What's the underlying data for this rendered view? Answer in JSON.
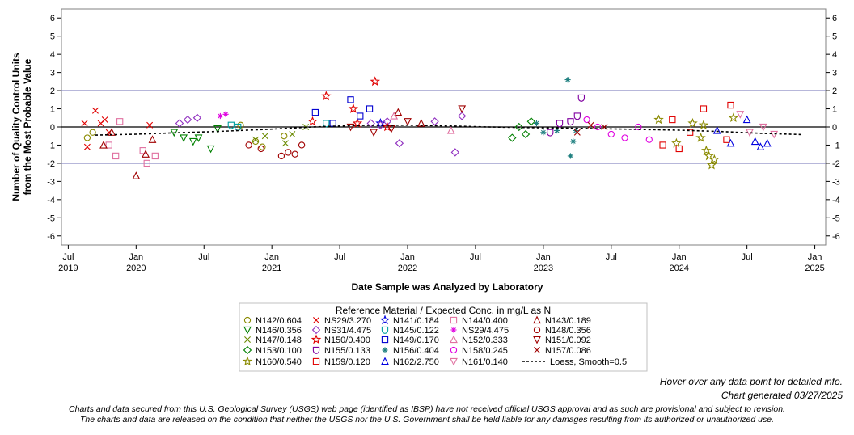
{
  "chart_data": {
    "type": "scatter",
    "ylabel_line1": "Number of Quality Control Units",
    "ylabel_line2": "from the Most Probable Value",
    "xlabel": "Date Sample was Analyzed by Laboratory",
    "ylim": [
      -6.5,
      6.5
    ],
    "xlim": [
      2019.45,
      2025.08
    ],
    "y_ticks": [
      -6,
      -5,
      -4,
      -3,
      -2,
      -1,
      0,
      1,
      2,
      3,
      4,
      5,
      6
    ],
    "y_tick_labels": [
      "-6",
      "-5",
      "-4",
      "-3",
      "-2",
      "-1",
      "0",
      "1",
      "2",
      "3",
      "4",
      "5",
      "6"
    ],
    "control_limits": [
      2,
      -2
    ],
    "zero_line": 0,
    "x_ticks": [
      {
        "value": 2019.5,
        "label": "Jul",
        "year": "2019"
      },
      {
        "value": 2020.0,
        "label": "Jan",
        "year": "2020"
      },
      {
        "value": 2020.5,
        "label": "Jul",
        "year": ""
      },
      {
        "value": 2021.0,
        "label": "Jan",
        "year": "2021"
      },
      {
        "value": 2021.5,
        "label": "Jul",
        "year": ""
      },
      {
        "value": 2022.0,
        "label": "Jan",
        "year": "2022"
      },
      {
        "value": 2022.5,
        "label": "Jul",
        "year": ""
      },
      {
        "value": 2023.0,
        "label": "Jan",
        "year": "2023"
      },
      {
        "value": 2023.5,
        "label": "Jul",
        "year": ""
      },
      {
        "value": 2024.0,
        "label": "Jan",
        "year": "2024"
      },
      {
        "value": 2024.5,
        "label": "Jul",
        "year": ""
      },
      {
        "value": 2025.0,
        "label": "Jan",
        "year": "2025"
      }
    ],
    "legend_title": "Reference Material / Expected Conc. in mg/L as N",
    "loess": {
      "name": "Loess, Smooth=0.5",
      "x": [
        2019.7,
        2020.0,
        2020.3,
        2020.6,
        2021.0,
        2021.3,
        2021.6,
        2022.0,
        2022.3,
        2022.6,
        2023.0,
        2023.3,
        2023.6,
        2024.0,
        2024.3,
        2024.6,
        2024.9
      ],
      "y": [
        -0.45,
        -0.4,
        -0.32,
        -0.25,
        -0.12,
        0.0,
        0.08,
        0.1,
        0.06,
        0.0,
        -0.05,
        -0.08,
        -0.12,
        -0.18,
        -0.25,
        -0.35,
        -0.42
      ]
    },
    "series": [
      {
        "name": "N142/0.604",
        "marker": "circle",
        "color": "#8a8a00",
        "x": [
          2019.64,
          2019.68,
          2020.77,
          2020.88,
          2020.93,
          2021.09
        ],
        "y": [
          -0.6,
          -0.3,
          0.1,
          -0.8,
          -1.1,
          -0.5
        ]
      },
      {
        "name": "NS29/3.270",
        "marker": "x",
        "color": "#e00000",
        "x": [
          2019.62,
          2019.64,
          2019.7,
          2019.74,
          2019.77,
          2019.8,
          2020.1
        ],
        "y": [
          0.2,
          -1.1,
          0.9,
          0.2,
          0.4,
          -0.3,
          0.1
        ]
      },
      {
        "name": "N141/0.184",
        "marker": "star",
        "color": "#0000e0",
        "x": [
          2021.8
        ],
        "y": [
          0.2
        ]
      },
      {
        "name": "N144/0.400",
        "marker": "square",
        "color": "#e070a0",
        "x": [
          2019.8,
          2019.85,
          2019.88,
          2020.05,
          2020.08,
          2020.14
        ],
        "y": [
          -1.0,
          -1.6,
          0.3,
          -1.3,
          -2.0,
          -1.6
        ]
      },
      {
        "name": "N143/0.189",
        "marker": "triangle",
        "color": "#a00000",
        "x": [
          2019.76,
          2019.82,
          2020.0,
          2020.07,
          2020.12,
          2021.93,
          2022.1
        ],
        "y": [
          -1.0,
          -0.3,
          -2.7,
          -1.5,
          -0.7,
          0.8,
          0.2
        ]
      },
      {
        "name": "N146/0.356",
        "marker": "triangle-down",
        "color": "#008000",
        "x": [
          2020.28,
          2020.35,
          2020.42,
          2020.46,
          2020.55,
          2020.6
        ],
        "y": [
          -0.3,
          -0.6,
          -0.8,
          -0.6,
          -1.2,
          -0.1
        ]
      },
      {
        "name": "NS31/4.475",
        "marker": "diamond",
        "color": "#9030c0",
        "x": [
          2020.32,
          2020.38,
          2020.45,
          2021.73,
          2021.8,
          2021.85,
          2021.94,
          2022.2,
          2022.35,
          2022.4
        ],
        "y": [
          0.2,
          0.4,
          0.5,
          0.2,
          0.1,
          0.3,
          -0.9,
          0.3,
          -1.4,
          0.6
        ]
      },
      {
        "name": "N145/0.122",
        "marker": "shield",
        "color": "#00a0a0",
        "x": [
          2020.7,
          2020.75,
          2021.4
        ],
        "y": [
          0.1,
          0.0,
          0.2
        ]
      },
      {
        "name": "NS29/4.475",
        "marker": "asterisk",
        "color": "#e000e0",
        "x": [
          2020.62,
          2020.66
        ],
        "y": [
          0.6,
          0.7
        ]
      },
      {
        "name": "N148/0.356",
        "marker": "circle",
        "color": "#a00000",
        "x": [
          2020.83,
          2020.92,
          2021.07,
          2021.12,
          2021.17,
          2021.22
        ],
        "y": [
          -1.0,
          -1.2,
          -1.6,
          -1.4,
          -1.5,
          -1.0
        ]
      },
      {
        "name": "N147/0.148",
        "marker": "x",
        "color": "#6a8a00",
        "x": [
          2020.88,
          2020.95,
          2021.1,
          2021.15,
          2021.25
        ],
        "y": [
          -0.7,
          -0.5,
          -0.9,
          -0.4,
          0.0
        ]
      },
      {
        "name": "N150/0.400",
        "marker": "star",
        "color": "#e00000",
        "x": [
          2021.3,
          2021.4,
          2021.6,
          2021.63,
          2021.76,
          2021.85
        ],
        "y": [
          0.3,
          1.7,
          1.0,
          0.2,
          2.5,
          0.0
        ]
      },
      {
        "name": "N149/0.170",
        "marker": "square",
        "color": "#0000d0",
        "x": [
          2021.32,
          2021.45,
          2021.58,
          2021.65,
          2021.72
        ],
        "y": [
          0.8,
          0.2,
          1.5,
          0.6,
          1.0
        ]
      },
      {
        "name": "N152/0.333",
        "marker": "triangle",
        "color": "#e070a0",
        "x": [
          2021.9,
          2022.32
        ],
        "y": [
          0.6,
          -0.2
        ]
      },
      {
        "name": "N151/0.092",
        "marker": "triangle-down",
        "color": "#a00000",
        "x": [
          2021.58,
          2021.75,
          2021.88,
          2022.0,
          2022.4
        ],
        "y": [
          0.0,
          -0.3,
          -0.1,
          0.3,
          1.0
        ]
      },
      {
        "name": "N153/0.100",
        "marker": "diamond",
        "color": "#008000",
        "x": [
          2022.77,
          2022.82,
          2022.87,
          2022.91
        ],
        "y": [
          -0.6,
          0.0,
          -0.4,
          0.3
        ]
      },
      {
        "name": "N155/0.133",
        "marker": "shield",
        "color": "#8000a0",
        "x": [
          2023.05,
          2023.12,
          2023.2,
          2023.25,
          2023.28
        ],
        "y": [
          -0.3,
          0.2,
          0.3,
          0.6,
          1.6
        ]
      },
      {
        "name": "N156/0.404",
        "marker": "asterisk",
        "color": "#208080",
        "x": [
          2022.95,
          2023.0,
          2023.1,
          2023.18,
          2023.2,
          2023.22,
          2023.24
        ],
        "y": [
          0.2,
          -0.3,
          -0.2,
          2.6,
          -1.6,
          -0.8,
          -0.2
        ]
      },
      {
        "name": "N158/0.245",
        "marker": "circle",
        "color": "#e000e0",
        "x": [
          2023.32,
          2023.4,
          2023.5,
          2023.6,
          2023.7,
          2023.78
        ],
        "y": [
          0.4,
          0.0,
          -0.4,
          -0.6,
          0.0,
          -0.7
        ]
      },
      {
        "name": "N157/0.086",
        "marker": "x",
        "color": "#a00000",
        "x": [
          2023.25,
          2023.35,
          2023.45
        ],
        "y": [
          -0.3,
          0.1,
          0.0
        ]
      },
      {
        "name": "N160/0.540",
        "marker": "star",
        "color": "#8a8a00",
        "x": [
          2023.85,
          2023.98,
          2024.1,
          2024.16,
          2024.18,
          2024.2,
          2024.22,
          2024.24,
          2024.26,
          2024.4
        ],
        "y": [
          0.4,
          -0.9,
          0.2,
          -0.6,
          0.1,
          -1.3,
          -1.6,
          -2.1,
          -1.8,
          0.5
        ]
      },
      {
        "name": "N159/0.120",
        "marker": "square",
        "color": "#e00000",
        "x": [
          2023.88,
          2023.95,
          2024.0,
          2024.08,
          2024.18,
          2024.35,
          2024.38
        ],
        "y": [
          -1.0,
          0.4,
          -1.2,
          -0.3,
          1.0,
          -0.7,
          1.2
        ]
      },
      {
        "name": "N162/2.750",
        "marker": "triangle",
        "color": "#0000e0",
        "x": [
          2024.28,
          2024.38,
          2024.5,
          2024.56,
          2024.6,
          2024.65
        ],
        "y": [
          -0.2,
          -0.9,
          0.4,
          -0.8,
          -1.1,
          -0.9
        ]
      },
      {
        "name": "N161/0.140",
        "marker": "triangle-down",
        "color": "#e070a0",
        "x": [
          2024.45,
          2024.52,
          2024.62,
          2024.7
        ],
        "y": [
          0.7,
          -0.3,
          0.0,
          -0.4
        ]
      }
    ]
  },
  "notes": {
    "hover": "Hover over any data point for detailed info.",
    "generated": "Chart generated 03/27/2025",
    "disclaimer_line1": "Charts and data secured from this U.S. Geological Survey (USGS) web page (identified as IBSP) have not received official USGS approval and as such are provisional and subject to revision.",
    "disclaimer_line2": "The charts and data are released on the condition that neither the USGS nor the U.S. Government shall be held liable for any damages resulting from its authorized or unauthorized use."
  }
}
